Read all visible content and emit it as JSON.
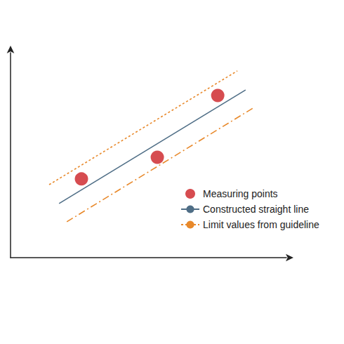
{
  "chart_data": {
    "type": "line",
    "xlim": [
      0,
      100
    ],
    "ylim": [
      0,
      100
    ],
    "tick_labels": false,
    "grid": false,
    "legend": "lower right",
    "series": [
      {
        "name": "Measuring points",
        "type": "scatter",
        "color": "#cc1f24",
        "marker": "circle",
        "x": [
          25.7,
          53.2,
          75.1
        ],
        "values": [
          38.4,
          49.0,
          79.1
        ]
      },
      {
        "name": "Constructed straight line",
        "type": "line",
        "color": "#4f6e86",
        "line_style": "solid",
        "x": [
          17.6,
          85.2
        ],
        "values": [
          26.4,
          81.8
        ]
      },
      {
        "name": "Limit values from guideline",
        "type": "line",
        "color": "#e8892b",
        "line_style": "dotted",
        "x": [
          14.0,
          82.2
        ],
        "values": [
          35.6,
          91.1
        ]
      },
      {
        "name": "Limit values from guideline",
        "type": "line",
        "color": "#e8892b",
        "line_style": "dashdot",
        "x": [
          20.4,
          88.3
        ],
        "values": [
          17.5,
          73.3
        ]
      }
    ]
  }
}
